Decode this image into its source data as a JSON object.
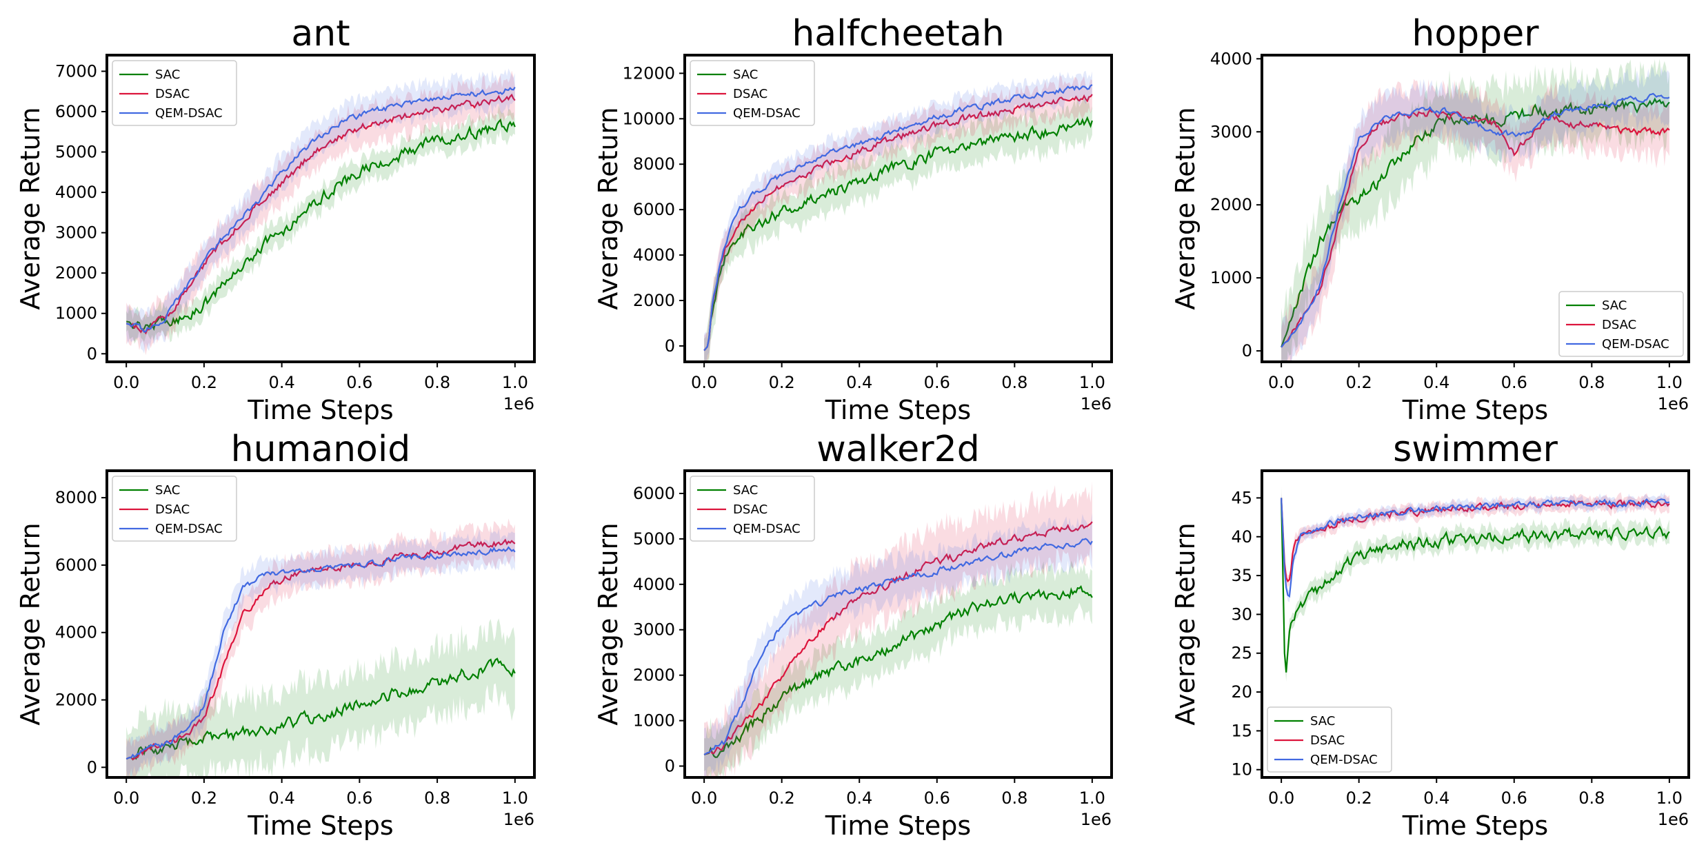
{
  "figure": {
    "background": "#ffffff"
  },
  "series_colors": {
    "SAC": "#008000",
    "DSAC": "#dc143c",
    "QEM-DSAC": "#4169e1"
  },
  "chart_data": [
    {
      "type": "line",
      "title": "ant",
      "xlabel": "Time Steps",
      "ylabel": "Average Return",
      "x_offset_label": "1e6",
      "xlim": [
        -0.05,
        1.05
      ],
      "ylim": [
        -200,
        7400
      ],
      "xticks": [
        0.0,
        0.2,
        0.4,
        0.6,
        0.8,
        1.0
      ],
      "xtick_labels": [
        "0.0",
        "0.2",
        "0.4",
        "0.6",
        "0.8",
        "1.0"
      ],
      "yticks": [
        0,
        1000,
        2000,
        3000,
        4000,
        5000,
        6000,
        7000
      ],
      "ytick_labels": [
        "0",
        "1000",
        "2000",
        "3000",
        "4000",
        "5000",
        "6000",
        "7000"
      ],
      "legend_position": "upper-left",
      "grid": false,
      "x": [
        0.0,
        0.05,
        0.1,
        0.15,
        0.2,
        0.25,
        0.3,
        0.35,
        0.4,
        0.45,
        0.5,
        0.55,
        0.6,
        0.65,
        0.7,
        0.75,
        0.8,
        0.85,
        0.9,
        0.95,
        1.0
      ],
      "series": [
        {
          "name": "SAC",
          "values": [
            800,
            700,
            800,
            900,
            1200,
            1700,
            2200,
            2700,
            3000,
            3500,
            3900,
            4200,
            4500,
            4700,
            4900,
            5100,
            5300,
            5400,
            5500,
            5600,
            5650
          ],
          "band": 300
        },
        {
          "name": "DSAC",
          "values": [
            750,
            600,
            900,
            1500,
            2200,
            2800,
            3300,
            3800,
            4200,
            4700,
            5100,
            5400,
            5600,
            5750,
            5850,
            5950,
            6050,
            6150,
            6200,
            6280,
            6350
          ],
          "band": 450
        },
        {
          "name": "QEM-DSAC",
          "values": [
            750,
            600,
            900,
            1600,
            2300,
            2900,
            3400,
            3900,
            4500,
            5000,
            5400,
            5700,
            5900,
            6050,
            6150,
            6250,
            6350,
            6400,
            6450,
            6500,
            6550
          ],
          "band": 400
        }
      ]
    },
    {
      "type": "line",
      "title": "halfcheetah",
      "xlabel": "Time Steps",
      "ylabel": "Average Return",
      "x_offset_label": "1e6",
      "xlim": [
        -0.05,
        1.05
      ],
      "ylim": [
        -700,
        12800
      ],
      "xticks": [
        0.0,
        0.2,
        0.4,
        0.6,
        0.8,
        1.0
      ],
      "xtick_labels": [
        "0.0",
        "0.2",
        "0.4",
        "0.6",
        "0.8",
        "1.0"
      ],
      "yticks": [
        0,
        2000,
        4000,
        6000,
        8000,
        10000,
        12000
      ],
      "ytick_labels": [
        "0",
        "2000",
        "4000",
        "6000",
        "8000",
        "10000",
        "12000"
      ],
      "legend_position": "upper-left",
      "grid": false,
      "x": [
        0.0,
        0.01,
        0.02,
        0.04,
        0.06,
        0.08,
        0.1,
        0.15,
        0.2,
        0.3,
        0.4,
        0.5,
        0.6,
        0.7,
        0.8,
        0.9,
        1.0
      ],
      "series": [
        {
          "name": "SAC",
          "values": [
            -200,
            0,
            1500,
            3200,
            4200,
            4700,
            5000,
            5500,
            5900,
            6600,
            7200,
            7900,
            8500,
            8900,
            9200,
            9500,
            9800
          ],
          "band": 800
        },
        {
          "name": "DSAC",
          "values": [
            -200,
            0,
            1600,
            3400,
            4500,
            5200,
            5700,
            6500,
            7100,
            7900,
            8600,
            9200,
            9700,
            10100,
            10400,
            10700,
            11000
          ],
          "band": 700
        },
        {
          "name": "QEM-DSAC",
          "values": [
            -200,
            0,
            1700,
            3600,
            4800,
            5600,
            6200,
            7000,
            7500,
            8300,
            8900,
            9500,
            10100,
            10500,
            10900,
            11200,
            11450
          ],
          "band": 600
        }
      ]
    },
    {
      "type": "line",
      "title": "hopper",
      "xlabel": "Time Steps",
      "ylabel": "Average Return",
      "x_offset_label": "1e6",
      "xlim": [
        -0.05,
        1.05
      ],
      "ylim": [
        -150,
        4050
      ],
      "xticks": [
        0.0,
        0.2,
        0.4,
        0.6,
        0.8,
        1.0
      ],
      "xtick_labels": [
        "0.0",
        "0.2",
        "0.4",
        "0.6",
        "0.8",
        "1.0"
      ],
      "yticks": [
        0,
        1000,
        2000,
        3000,
        4000
      ],
      "ytick_labels": [
        "0",
        "1000",
        "2000",
        "3000",
        "4000"
      ],
      "legend_position": "lower-right",
      "grid": false,
      "x": [
        0.0,
        0.05,
        0.1,
        0.15,
        0.2,
        0.25,
        0.3,
        0.35,
        0.4,
        0.45,
        0.5,
        0.55,
        0.6,
        0.65,
        0.7,
        0.75,
        0.8,
        0.85,
        0.9,
        0.95,
        1.0
      ],
      "series": [
        {
          "name": "SAC",
          "values": [
            50,
            800,
            1500,
            1900,
            2100,
            2300,
            2600,
            2900,
            3100,
            3200,
            3200,
            3150,
            3200,
            3300,
            3250,
            3300,
            3300,
            3350,
            3350,
            3380,
            3400
          ],
          "band": 450
        },
        {
          "name": "DSAC",
          "values": [
            50,
            400,
            800,
            1800,
            2800,
            3100,
            3200,
            3250,
            3250,
            3200,
            3150,
            3100,
            2700,
            3000,
            3200,
            3100,
            3100,
            3050,
            3000,
            3000,
            3000
          ],
          "band": 350
        },
        {
          "name": "QEM-DSAC",
          "values": [
            50,
            400,
            900,
            2000,
            2900,
            3150,
            3250,
            3300,
            3300,
            3250,
            3100,
            3000,
            2950,
            3050,
            3250,
            3300,
            3350,
            3400,
            3450,
            3480,
            3500
          ],
          "band": 300
        }
      ]
    },
    {
      "type": "line",
      "title": "humanoid",
      "xlabel": "Time Steps",
      "ylabel": "Average Return",
      "x_offset_label": "1e6",
      "xlim": [
        -0.05,
        1.05
      ],
      "ylim": [
        -300,
        8800
      ],
      "xticks": [
        0.0,
        0.2,
        0.4,
        0.6,
        0.8,
        1.0
      ],
      "xtick_labels": [
        "0.0",
        "0.2",
        "0.4",
        "0.6",
        "0.8",
        "1.0"
      ],
      "yticks": [
        0,
        2000,
        4000,
        6000,
        8000
      ],
      "ytick_labels": [
        "0",
        "2000",
        "4000",
        "6000",
        "8000"
      ],
      "legend_position": "upper-left",
      "grid": false,
      "x": [
        0.0,
        0.05,
        0.1,
        0.15,
        0.2,
        0.25,
        0.3,
        0.35,
        0.4,
        0.45,
        0.5,
        0.55,
        0.6,
        0.65,
        0.7,
        0.75,
        0.8,
        0.85,
        0.9,
        0.95,
        1.0
      ],
      "series": [
        {
          "name": "SAC",
          "values": [
            250,
            500,
            600,
            700,
            800,
            900,
            1000,
            1100,
            1200,
            1400,
            1500,
            1700,
            1900,
            2100,
            2200,
            2300,
            2500,
            2700,
            2900,
            3000,
            2800
          ],
          "band": 1000
        },
        {
          "name": "DSAC",
          "values": [
            250,
            500,
            700,
            900,
            1400,
            3000,
            4500,
            5200,
            5600,
            5800,
            5900,
            5950,
            6000,
            6100,
            6200,
            6300,
            6400,
            6500,
            6600,
            6650,
            6700
          ],
          "band": 500
        },
        {
          "name": "QEM-DSAC",
          "values": [
            250,
            500,
            700,
            1000,
            1800,
            4000,
            5300,
            5700,
            5800,
            5900,
            5900,
            5950,
            6000,
            6100,
            6200,
            6250,
            6300,
            6350,
            6400,
            6450,
            6450
          ],
          "band": 450
        }
      ]
    },
    {
      "type": "line",
      "title": "walker2d",
      "xlabel": "Time Steps",
      "ylabel": "Average Return",
      "x_offset_label": "1e6",
      "xlim": [
        -0.05,
        1.05
      ],
      "ylim": [
        -250,
        6500
      ],
      "xticks": [
        0.0,
        0.2,
        0.4,
        0.6,
        0.8,
        1.0
      ],
      "xtick_labels": [
        "0.0",
        "0.2",
        "0.4",
        "0.6",
        "0.8",
        "1.0"
      ],
      "yticks": [
        0,
        1000,
        2000,
        3000,
        4000,
        5000,
        6000
      ],
      "ytick_labels": [
        "0",
        "1000",
        "2000",
        "3000",
        "4000",
        "5000",
        "6000"
      ],
      "legend_position": "upper-left",
      "grid": false,
      "x": [
        0.0,
        0.05,
        0.1,
        0.15,
        0.2,
        0.25,
        0.3,
        0.35,
        0.4,
        0.45,
        0.5,
        0.55,
        0.6,
        0.65,
        0.7,
        0.75,
        0.8,
        0.85,
        0.9,
        0.95,
        1.0
      ],
      "series": [
        {
          "name": "SAC",
          "values": [
            250,
            400,
            700,
            1100,
            1500,
            1800,
            2000,
            2200,
            2300,
            2500,
            2700,
            2900,
            3100,
            3300,
            3500,
            3600,
            3700,
            3700,
            3800,
            3850,
            3850
          ],
          "band": 500
        },
        {
          "name": "DSAC",
          "values": [
            250,
            450,
            900,
            1400,
            2000,
            2500,
            3000,
            3400,
            3700,
            3900,
            4100,
            4300,
            4500,
            4600,
            4800,
            4900,
            5000,
            5100,
            5200,
            5250,
            5300
          ],
          "band": 700
        },
        {
          "name": "QEM-DSAC",
          "values": [
            250,
            500,
            1400,
            2500,
            3100,
            3400,
            3600,
            3800,
            3900,
            4000,
            4100,
            4200,
            4300,
            4400,
            4500,
            4600,
            4700,
            4800,
            4850,
            4900,
            4950
          ],
          "band": 450
        }
      ]
    },
    {
      "type": "line",
      "title": "swimmer",
      "xlabel": "Time Steps",
      "ylabel": "Average Return",
      "x_offset_label": "1e6",
      "xlim": [
        -0.05,
        1.05
      ],
      "ylim": [
        9,
        48.5
      ],
      "xticks": [
        0.0,
        0.2,
        0.4,
        0.6,
        0.8,
        1.0
      ],
      "xtick_labels": [
        "0.0",
        "0.2",
        "0.4",
        "0.6",
        "0.8",
        "1.0"
      ],
      "yticks": [
        10,
        15,
        20,
        25,
        30,
        35,
        40,
        45
      ],
      "ytick_labels": [
        "10",
        "15",
        "20",
        "25",
        "30",
        "35",
        "40",
        "45"
      ],
      "legend_position": "lower-left",
      "grid": false,
      "x": [
        0.0,
        0.01,
        0.02,
        0.03,
        0.05,
        0.1,
        0.15,
        0.2,
        0.3,
        0.4,
        0.5,
        0.6,
        0.7,
        0.8,
        0.9,
        1.0
      ],
      "series": [
        {
          "name": "SAC",
          "values": [
            45,
            21,
            27,
            29,
            31,
            33.5,
            36,
            37.5,
            39,
            39.5,
            39.8,
            40,
            40.2,
            40.3,
            40.3,
            40.3
          ],
          "band": 1.2
        },
        {
          "name": "DSAC",
          "values": [
            45,
            35,
            34,
            38,
            40.5,
            41,
            41.8,
            42.3,
            43,
            43.5,
            43.8,
            44,
            44.1,
            44.2,
            44.2,
            44.3
          ],
          "band": 0.8
        },
        {
          "name": "QEM-DSAC",
          "values": [
            45,
            34,
            32,
            37,
            40.5,
            41.2,
            42,
            42.5,
            43.2,
            43.6,
            43.9,
            44.1,
            44.2,
            44.3,
            44.4,
            44.5
          ],
          "band": 0.7
        }
      ]
    }
  ]
}
